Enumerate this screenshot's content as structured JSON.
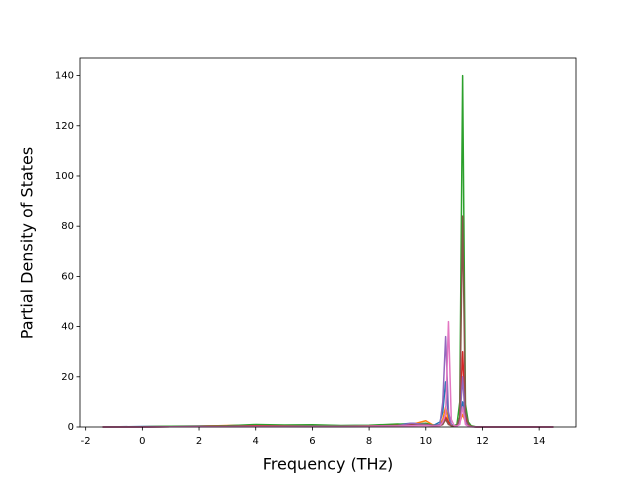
{
  "chart_data": {
    "type": "line",
    "xlabel": "Frequency (THz)",
    "ylabel": "Partial Density of States",
    "x": [
      -1.4,
      0,
      1,
      2,
      3,
      4,
      5,
      6,
      7,
      8,
      9,
      9.5,
      10,
      10.3,
      10.5,
      10.6,
      10.7,
      10.8,
      10.9,
      11.0,
      11.1,
      11.2,
      11.3,
      11.4,
      11.5,
      11.6,
      11.8,
      12,
      13,
      14,
      14.5
    ],
    "series": [
      {
        "color": "#1f77b4",
        "values": [
          0,
          0.2,
          0.3,
          0.4,
          0.5,
          0.8,
          0.6,
          0.7,
          0.5,
          0.6,
          1,
          1.5,
          1.2,
          0.8,
          2,
          6,
          18,
          4,
          1,
          0.5,
          0.8,
          3,
          10,
          3,
          1,
          0.3,
          0,
          0,
          0,
          0,
          0
        ]
      },
      {
        "color": "#ff7f0e",
        "values": [
          0,
          0.1,
          0.2,
          0.3,
          0.6,
          0.7,
          0.5,
          0.6,
          0.4,
          0.5,
          0.8,
          1,
          2.5,
          0.5,
          1,
          3,
          8,
          2,
          0.5,
          0.3,
          0.5,
          2,
          5,
          2,
          0.5,
          0.2,
          0,
          0,
          0,
          0,
          0
        ]
      },
      {
        "color": "#2ca02c",
        "values": [
          0,
          0.1,
          0.3,
          0.3,
          0.5,
          1,
          0.8,
          0.9,
          0.6,
          0.7,
          1.2,
          1,
          1.5,
          0.5,
          1,
          2,
          3,
          2,
          1,
          0.5,
          1,
          10,
          140,
          9,
          2,
          0.5,
          0,
          0,
          0,
          0,
          0
        ]
      },
      {
        "color": "#d62728",
        "values": [
          0,
          0,
          0.1,
          0.2,
          0.3,
          0.5,
          0.4,
          0.3,
          0.3,
          0.4,
          0.6,
          0.8,
          1,
          0.5,
          0.8,
          2,
          4,
          2,
          0.5,
          0.3,
          0.5,
          3,
          30,
          4,
          1,
          0.2,
          0,
          0,
          0,
          0,
          0
        ]
      },
      {
        "color": "#9467bd",
        "values": [
          0,
          0,
          0.1,
          0.1,
          0.2,
          0.3,
          0.3,
          0.2,
          0.2,
          0.3,
          0.5,
          1.5,
          1,
          0.5,
          1,
          10,
          36,
          6,
          1,
          0.3,
          0.4,
          2,
          20,
          2,
          0.5,
          0.1,
          0,
          0,
          0,
          0,
          0
        ]
      },
      {
        "color": "#8c564b",
        "values": [
          0,
          0,
          0.1,
          0.1,
          0.2,
          0.3,
          0.3,
          0.2,
          0.2,
          0.3,
          0.5,
          0.6,
          0.8,
          0.3,
          0.6,
          1,
          3,
          1,
          0.5,
          0.3,
          0.5,
          4,
          84,
          6,
          1,
          0.2,
          0,
          0,
          0,
          0,
          0
        ]
      },
      {
        "color": "#e377c2",
        "values": [
          0,
          0,
          0.1,
          0.1,
          0.1,
          0.2,
          0.2,
          0.2,
          0.2,
          0.3,
          0.4,
          0.5,
          0.6,
          0.3,
          0.5,
          2,
          5,
          42,
          3,
          0.5,
          0.4,
          1,
          8,
          1,
          0.3,
          0.1,
          0,
          0,
          0,
          0,
          0
        ]
      }
    ],
    "xlim": [
      -2.2,
      15.3
    ],
    "ylim": [
      0,
      147
    ],
    "xticks": [
      -2,
      0,
      2,
      4,
      6,
      8,
      10,
      12,
      14
    ],
    "yticks": [
      0,
      20,
      40,
      60,
      80,
      100,
      120,
      140
    ],
    "grid": false
  }
}
